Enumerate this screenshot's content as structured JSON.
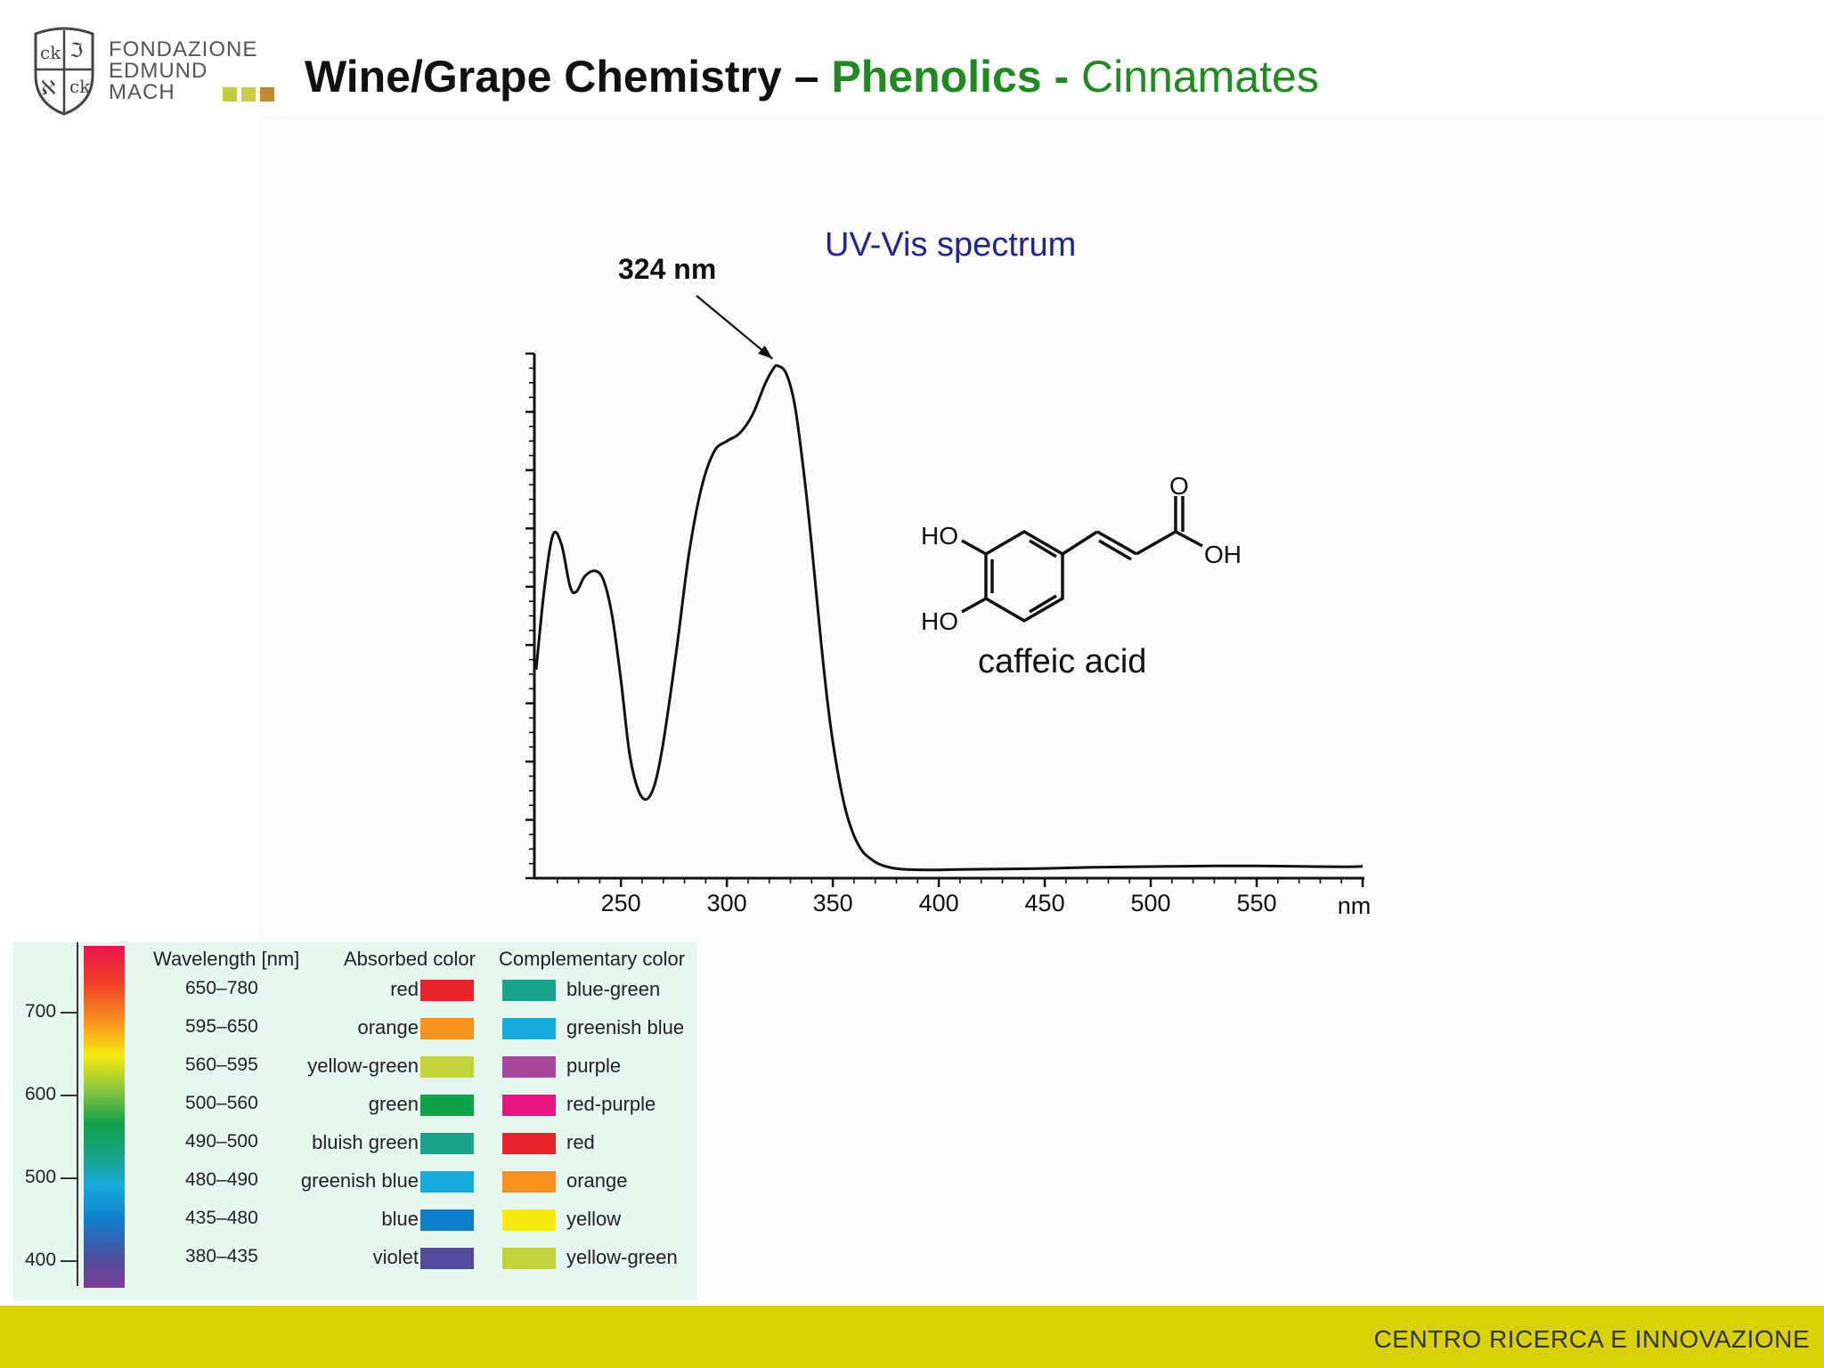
{
  "logo": {
    "lines": [
      "FONDAZIONE",
      "EDMUND",
      "MACH"
    ],
    "square_colors": [
      "#c3cc3b",
      "#c9cc4a",
      "#c08a2a"
    ]
  },
  "title": {
    "part1": "Wine/Grape Chemistry – ",
    "part2": "Phenolics - ",
    "part3": "Cinnamates"
  },
  "spectrum_title": "UV-Vis spectrum",
  "peak_label": "324 nm",
  "molecule": {
    "name": "caffeic acid",
    "atoms": {
      "ho_top": "HO",
      "ho_bottom": "HO",
      "o": "O",
      "oh": "OH"
    }
  },
  "chart_data": {
    "type": "line",
    "x_unit_label": "nm",
    "xlim": [
      210,
      600
    ],
    "ylim": [
      0,
      1
    ],
    "x_ticks": [
      250,
      300,
      350,
      400,
      450,
      500,
      550
    ],
    "grid": false,
    "peak_annotation": {
      "x": 324,
      "label": "324 nm"
    },
    "series": [
      {
        "points": [
          [
            210,
            0.4
          ],
          [
            214,
            0.56
          ],
          [
            218,
            0.66
          ],
          [
            222,
            0.64
          ],
          [
            226,
            0.56
          ],
          [
            229,
            0.55
          ],
          [
            233,
            0.58
          ],
          [
            238,
            0.59
          ],
          [
            242,
            0.57
          ],
          [
            246,
            0.5
          ],
          [
            250,
            0.38
          ],
          [
            254,
            0.24
          ],
          [
            258,
            0.17
          ],
          [
            262,
            0.15
          ],
          [
            266,
            0.18
          ],
          [
            270,
            0.26
          ],
          [
            276,
            0.43
          ],
          [
            282,
            0.62
          ],
          [
            288,
            0.75
          ],
          [
            294,
            0.82
          ],
          [
            300,
            0.84
          ],
          [
            306,
            0.855
          ],
          [
            312,
            0.89
          ],
          [
            318,
            0.95
          ],
          [
            322,
            0.98
          ],
          [
            324,
            0.985
          ],
          [
            328,
            0.97
          ],
          [
            332,
            0.91
          ],
          [
            336,
            0.79
          ],
          [
            340,
            0.64
          ],
          [
            344,
            0.47
          ],
          [
            348,
            0.32
          ],
          [
            352,
            0.21
          ],
          [
            356,
            0.13
          ],
          [
            360,
            0.08
          ],
          [
            364,
            0.05
          ],
          [
            368,
            0.035
          ],
          [
            372,
            0.025
          ],
          [
            378,
            0.018
          ],
          [
            385,
            0.015
          ],
          [
            395,
            0.014
          ],
          [
            410,
            0.015
          ],
          [
            430,
            0.016
          ],
          [
            450,
            0.017
          ],
          [
            470,
            0.019
          ],
          [
            490,
            0.02
          ],
          [
            510,
            0.021
          ],
          [
            530,
            0.022
          ],
          [
            550,
            0.022
          ],
          [
            570,
            0.021
          ],
          [
            590,
            0.02
          ],
          [
            600,
            0.021
          ]
        ]
      }
    ]
  },
  "color_table": {
    "headers": {
      "wavelength": "Wavelength [nm]",
      "absorbed": "Absorbed color",
      "complementary": "Complementary color"
    },
    "scale_labels": [
      "700",
      "600",
      "500",
      "400"
    ],
    "rows": [
      {
        "range": "650–780",
        "absorbed": "red",
        "absorbed_hex": "#e8232b",
        "complementary": "blue-green",
        "complementary_hex": "#1aa38b"
      },
      {
        "range": "595–650",
        "absorbed": "orange",
        "absorbed_hex": "#f7921e",
        "complementary": "greenish blue",
        "complementary_hex": "#17aadc"
      },
      {
        "range": "560–595",
        "absorbed": "yellow-green",
        "absorbed_hex": "#c3d43b",
        "complementary": "purple",
        "complementary_hex": "#a8489c"
      },
      {
        "range": "500–560",
        "absorbed": "green",
        "absorbed_hex": "#12a14b",
        "complementary": "red-purple",
        "complementary_hex": "#e8157f"
      },
      {
        "range": "490–500",
        "absorbed": "bluish green",
        "absorbed_hex": "#1aa38b",
        "complementary": "red",
        "complementary_hex": "#e8232b"
      },
      {
        "range": "480–490",
        "absorbed": "greenish blue",
        "absorbed_hex": "#17aadc",
        "complementary": "orange",
        "complementary_hex": "#f7921e"
      },
      {
        "range": "435–480",
        "absorbed": "blue",
        "absorbed_hex": "#0f7fcb",
        "complementary": "yellow",
        "complementary_hex": "#f6ea10"
      },
      {
        "range": "380–435",
        "absorbed": "violet",
        "absorbed_hex": "#524a9b",
        "complementary": "yellow-green",
        "complementary_hex": "#c3d43b"
      }
    ]
  },
  "footer": {
    "text": "CENTRO RICERCA E INNOVAZIONE",
    "color": "#d9d207"
  }
}
